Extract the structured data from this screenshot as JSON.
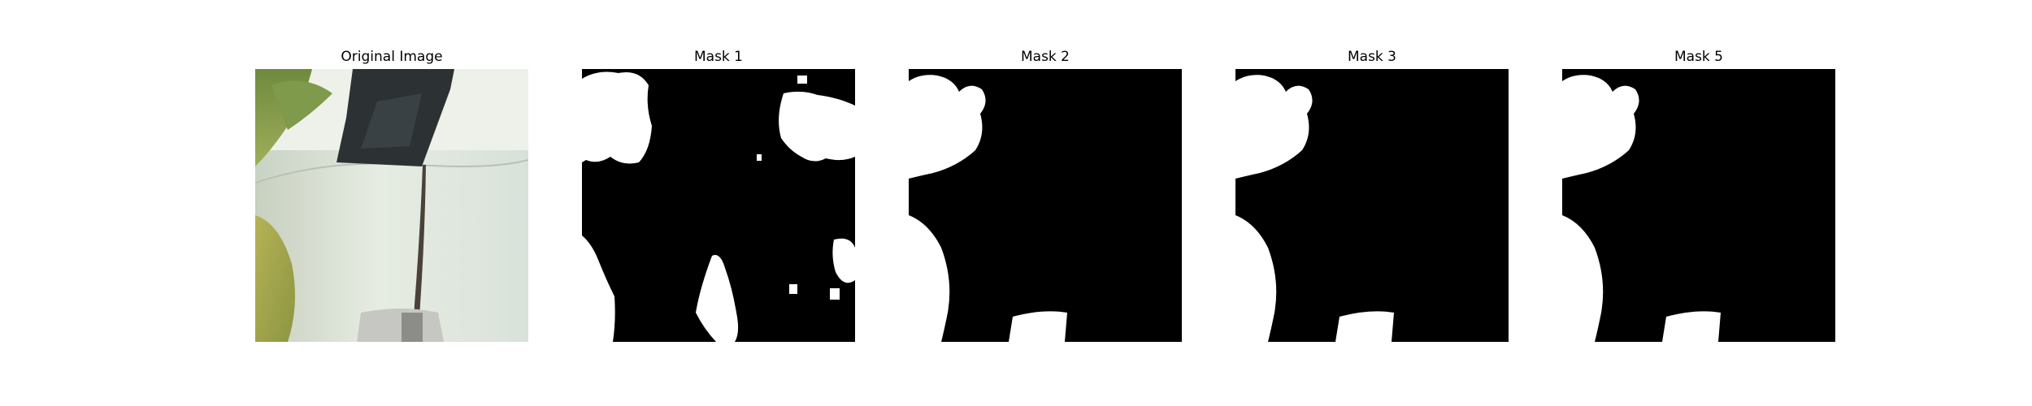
{
  "figure": {
    "panels": [
      {
        "id": "original",
        "title": "Original Image",
        "kind": "photo"
      },
      {
        "id": "mask-1",
        "title": "Mask 1",
        "kind": "mask"
      },
      {
        "id": "mask-2",
        "title": "Mask 2",
        "kind": "mask"
      },
      {
        "id": "mask-3",
        "title": "Mask 3",
        "kind": "mask"
      },
      {
        "id": "mask-5",
        "title": "Mask 5",
        "kind": "mask"
      }
    ]
  },
  "colors": {
    "background": "#ffffff",
    "mask_foreground": "#ffffff",
    "mask_background": "#000000"
  }
}
